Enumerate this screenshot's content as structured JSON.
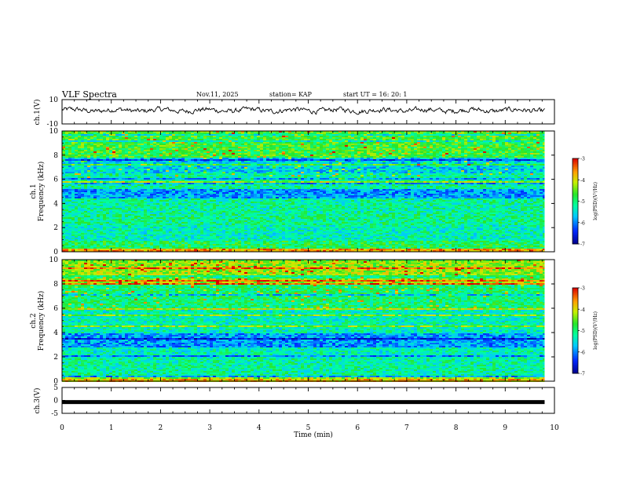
{
  "header": {
    "title": "VLF Spectra",
    "date": "Nov.11, 2025",
    "station": "station= KAP",
    "start": "start  UT =   16: 20: 1"
  },
  "chart_data": [
    {
      "type": "line",
      "name": "ch1-waveform",
      "ylabel": "ch.1(V)",
      "ylim": [
        -10,
        10
      ],
      "yticks": [
        "10",
        "-10"
      ],
      "xlim": [
        0,
        9.8
      ],
      "description_series": "noisy waveform fluctuating roughly between -2 and +4 V"
    },
    {
      "type": "heatmap",
      "name": "ch1-spectrogram",
      "ylabel": "ch.1\nFrequency  (kHz)",
      "ylim": [
        0,
        10
      ],
      "yticks": [
        "0",
        "2",
        "4",
        "6",
        "8",
        "10"
      ],
      "xlim": [
        0,
        9.8
      ],
      "colorbar": {
        "label": "log(PSD)(V²/Hz)",
        "range": [
          -7,
          -3
        ],
        "ticks": [
          "-3",
          "-4",
          "-5",
          "-6",
          "-7"
        ]
      },
      "bands_khz": [
        {
          "lo": 0.0,
          "hi": 0.3,
          "level": -3.6
        },
        {
          "lo": 0.3,
          "hi": 1.0,
          "level": -4.9
        },
        {
          "lo": 1.0,
          "hi": 2.3,
          "level": -5.3
        },
        {
          "lo": 2.3,
          "hi": 3.2,
          "level": -5.1
        },
        {
          "lo": 3.2,
          "hi": 4.5,
          "level": -5.2
        },
        {
          "lo": 4.5,
          "hi": 5.3,
          "level": -5.9
        },
        {
          "lo": 5.3,
          "hi": 6.5,
          "level": -5.2
        },
        {
          "lo": 6.5,
          "hi": 7.8,
          "level": -5.6
        },
        {
          "lo": 7.8,
          "hi": 10.0,
          "level": -4.7
        }
      ]
    },
    {
      "type": "heatmap",
      "name": "ch2-spectrogram",
      "ylabel": "ch.2\nFrequency  (kHz)",
      "ylim": [
        0,
        10
      ],
      "yticks": [
        "0",
        "2",
        "4",
        "6",
        "8",
        "10"
      ],
      "xlim": [
        0,
        9.8
      ],
      "colorbar": {
        "label": "log(PSD)(V²/Hz)",
        "range": [
          -7,
          -3
        ],
        "ticks": [
          "-3",
          "-4",
          "-5",
          "-6",
          "-7"
        ]
      },
      "bands_khz": [
        {
          "lo": 0.0,
          "hi": 0.3,
          "level": -3.8
        },
        {
          "lo": 0.3,
          "hi": 2.0,
          "level": -5.2
        },
        {
          "lo": 2.0,
          "hi": 3.0,
          "level": -5.3
        },
        {
          "lo": 3.0,
          "hi": 4.0,
          "level": -5.9
        },
        {
          "lo": 4.0,
          "hi": 6.0,
          "level": -5.3
        },
        {
          "lo": 6.0,
          "hi": 8.0,
          "level": -5.0
        },
        {
          "lo": 8.0,
          "hi": 10.0,
          "level": -4.3
        }
      ]
    },
    {
      "type": "line",
      "name": "ch3-waveform",
      "ylabel": "ch.3(V)",
      "ylim": [
        -5,
        5
      ],
      "yticks": [
        "5",
        "0",
        "-5"
      ],
      "xlim": [
        0,
        9.8
      ],
      "constant_value": -0.5
    }
  ],
  "xaxis": {
    "label": "Time  (min)",
    "ticks": [
      "0",
      "1",
      "2",
      "3",
      "4",
      "5",
      "6",
      "7",
      "8",
      "9",
      "10"
    ],
    "range": [
      0,
      10
    ]
  },
  "colors": {
    "background": "#ffffff",
    "axis": "#000000",
    "waveform": "#000000"
  }
}
